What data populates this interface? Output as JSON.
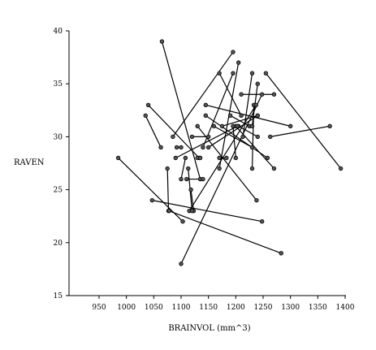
{
  "chart_data": {
    "type": "scatter",
    "title": "",
    "xlabel": "BRAINVOL (mm^3)",
    "ylabel": "RAVEN",
    "xlim": [
      950,
      1400
    ],
    "ylim": [
      15,
      40
    ],
    "xticks": [
      950,
      1000,
      1050,
      1100,
      1150,
      1200,
      1250,
      1300,
      1350,
      1400
    ],
    "yticks": [
      15,
      20,
      25,
      30,
      35,
      40
    ],
    "grid": false,
    "marker": "open-circle",
    "line_color": "#000000",
    "pairs": [
      [
        [
          1065,
          39
        ],
        [
          1135,
          26
        ]
      ],
      [
        [
          1195,
          38
        ],
        [
          1085,
          30
        ]
      ],
      [
        [
          1205,
          37
        ],
        [
          1170,
          27
        ]
      ],
      [
        [
          1255,
          36
        ],
        [
          1392,
          27
        ]
      ],
      [
        [
          1170,
          36
        ],
        [
          1210,
          32
        ]
      ],
      [
        [
          1195,
          36
        ],
        [
          1140,
          29
        ]
      ],
      [
        [
          1230,
          36
        ],
        [
          1213,
          30
        ]
      ],
      [
        [
          1210,
          34
        ],
        [
          1270,
          34
        ]
      ],
      [
        [
          1233,
          33
        ],
        [
          1230,
          27
        ]
      ],
      [
        [
          1040,
          33
        ],
        [
          1133,
          28
        ]
      ],
      [
        [
          1145,
          33
        ],
        [
          1300,
          31
        ]
      ],
      [
        [
          1035,
          32
        ],
        [
          1063,
          29
        ]
      ],
      [
        [
          1145,
          32
        ],
        [
          1258,
          28
        ]
      ],
      [
        [
          1190,
          32
        ],
        [
          1225,
          31
        ]
      ],
      [
        [
          1240,
          35
        ],
        [
          1230,
          31
        ]
      ],
      [
        [
          1160,
          31
        ],
        [
          1230,
          29
        ]
      ],
      [
        [
          1130,
          31
        ],
        [
          1238,
          24
        ]
      ],
      [
        [
          1175,
          31
        ],
        [
          1240,
          32
        ]
      ],
      [
        [
          1195,
          31
        ],
        [
          1200,
          28
        ]
      ],
      [
        [
          1200,
          31
        ],
        [
          1270,
          27
        ]
      ],
      [
        [
          1263,
          30
        ],
        [
          1372,
          31
        ]
      ],
      [
        [
          1120,
          30
        ],
        [
          1150,
          30
        ]
      ],
      [
        [
          1205,
          31
        ],
        [
          1240,
          30
        ]
      ],
      [
        [
          1150,
          29
        ],
        [
          1240,
          32
        ]
      ],
      [
        [
          1092,
          29
        ],
        [
          1100,
          29
        ]
      ],
      [
        [
          1108,
          28
        ],
        [
          1100,
          26
        ]
      ],
      [
        [
          1130,
          28
        ],
        [
          1135,
          28
        ]
      ],
      [
        [
          1183,
          28
        ],
        [
          1170,
          28
        ]
      ],
      [
        [
          1075,
          27
        ],
        [
          1077,
          23
        ]
      ],
      [
        [
          1090,
          28
        ],
        [
          1203,
          31
        ]
      ],
      [
        [
          1110,
          26
        ],
        [
          1140,
          26
        ]
      ],
      [
        [
          1118,
          25
        ],
        [
          1123,
          23
        ]
      ],
      [
        [
          1115,
          23
        ],
        [
          1237,
          33
        ]
      ],
      [
        [
          1113,
          27
        ],
        [
          1120,
          23
        ]
      ],
      [
        [
          985,
          28
        ],
        [
          1103,
          22
        ]
      ],
      [
        [
          1047,
          24
        ],
        [
          1248,
          22
        ]
      ],
      [
        [
          1100,
          18
        ],
        [
          1248,
          34
        ]
      ],
      [
        [
          1078,
          23
        ],
        [
          1283,
          19
        ]
      ]
    ]
  }
}
